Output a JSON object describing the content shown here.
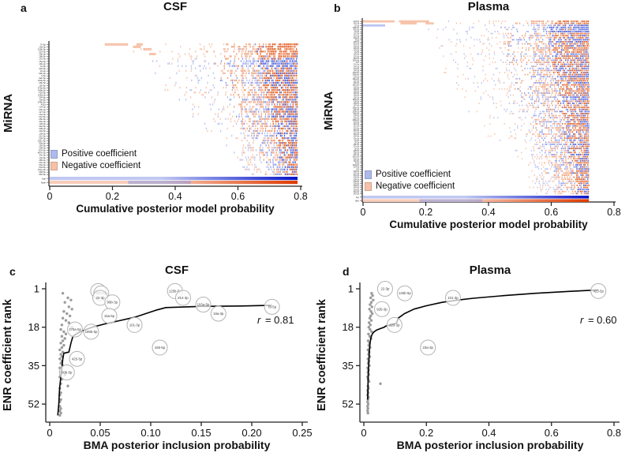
{
  "chart_data": [
    {
      "id": "a",
      "type": "heatmap",
      "panel_letter": "a",
      "title": "CSF",
      "xlabel": "Cumulative posterior model probability",
      "ylabel": "MiRNA",
      "xlim": [
        0,
        0.8
      ],
      "x_ticks": [
        0,
        0.2,
        0.4,
        0.6,
        0.8
      ],
      "x_tick_labels": [
        "0",
        "0.2",
        "0.4",
        "0.6",
        "0.8"
      ],
      "legend_position": "bottom-left",
      "legend": [
        {
          "label": "Positive coefficient",
          "color": "#aeb9ec"
        },
        {
          "label": "Negative coefficient",
          "color": "#f6c1a8"
        }
      ],
      "rows": [
        "7b-5p",
        "19a-3p",
        "125b-5p",
        "214-3p",
        "29b-3p",
        "186-5p",
        "101-3p",
        "15a-5p",
        "19b-3p",
        "21-5p",
        "320-5p",
        "22-3p",
        "99b-3p",
        "9-5p",
        "92b-5p",
        "193a-5p",
        "30b-5p",
        "165-5p",
        "375a-5p",
        "199b-5p",
        "425-5p",
        "135a-3p",
        "204-5p",
        "10a-5p",
        "146b-5p",
        "451a",
        "124-3p",
        "23b-3p",
        "127-3p",
        "142-3p",
        "222-5p",
        "26b-5p",
        "30e-3p",
        "128-3p",
        "342-5p",
        "338-3p",
        "129-5p",
        "138-5p",
        "212-3p",
        "329-3p",
        "181c-5p",
        "99a-5p",
        "150-5p",
        "206-3p",
        "874-3p",
        "487b-3p",
        "34c-5p",
        "132-5p",
        "485-3p",
        "210-3p",
        "664-3p",
        "504-5p",
        "151a-3p",
        "668-5p",
        "660-5p"
      ],
      "covariate_rows": [
        {
          "label": "Age",
          "sign": "positive",
          "gradient": [
            "#c0c8f2",
            "#0a14c8"
          ]
        },
        {
          "label": "Male",
          "sign": "negative",
          "gradient": [
            "#f8cdbb",
            "#df3a00"
          ]
        }
      ],
      "render_params": {
        "seed": 7,
        "cell_extent": 0.79,
        "f_start": 0.26,
        "f_end": 0.63,
        "neg_top_rows": 6,
        "pos_rows": [
          7,
          8
        ],
        "row_start_override": {
          "0": 0.37
        },
        "male_overlay": [
          0.25,
          0.45
        ],
        "feature_bars": [
          {
            "row": 0,
            "x0": 0.176,
            "x1": 0.249,
            "sign": "neg"
          },
          {
            "row": 0,
            "x0": 0.277,
            "x1": 0.296,
            "sign": "neg"
          },
          {
            "row": 1,
            "x0": 0.266,
            "x1": 0.29,
            "sign": "neg"
          },
          {
            "row": 2,
            "x0": 0.3,
            "x1": 0.324,
            "sign": "neg"
          },
          {
            "row": 4,
            "x0": 0.318,
            "x1": 0.338,
            "sign": "neg"
          }
        ]
      }
    },
    {
      "id": "b",
      "type": "heatmap",
      "panel_letter": "b",
      "title": "Plasma",
      "xlabel": "Cumulative posterior model probability",
      "ylabel": "MiRNA",
      "xlim": [
        0,
        0.8
      ],
      "x_ticks": [
        0,
        0.2,
        0.4,
        0.6,
        0.8
      ],
      "x_tick_labels": [
        "0",
        "0.2",
        "0.4",
        "0.6",
        "0.8"
      ],
      "legend_position": "bottom-left",
      "legend": [
        {
          "label": "Positive coefficient",
          "color": "#aeb9ec"
        },
        {
          "label": "Negative coefficient",
          "color": "#f6c1a8"
        }
      ],
      "rows": [
        "423-5p",
        "342-3p",
        "22-3p",
        "125b-5p",
        "92b-3p",
        "16-5p",
        "101-3p",
        "223-3p",
        "23a-3p",
        "451a",
        "486-5p",
        "92a-3p",
        "30d-5p",
        "126-3p",
        "145-5p",
        "21-5p",
        "155-5p",
        "191-5p",
        "26a-5p",
        "103a-3p",
        "107",
        "27b-3p",
        "140-3p",
        "142-5p",
        "144-3p",
        "146a-5p",
        "148a-3p",
        "150-5p",
        "151a-5p",
        "152-3p",
        "15b-5p",
        "181a-5p",
        "182-5p",
        "183-5p",
        "185-5p",
        "186-5p",
        "18a-5p",
        "192-5p",
        "193b-3p",
        "194-5p",
        "195-5p",
        "197-3p",
        "199a-3p",
        "19b-3p",
        "200b-3p",
        "202-3p",
        "204-5p",
        "205-5p",
        "208a-3p",
        "20a-5p",
        "210-3p",
        "212-3p",
        "215-5p",
        "218-5p",
        "221-3p",
        "222-3p",
        "224-5p",
        "23b-3p",
        "24-3p",
        "25-3p",
        "26b-5p",
        "27a-3p",
        "28-3p",
        "296-5p",
        "29a-3p",
        "29c-3p",
        "301a-3p",
        "30b-5p",
        "30c-5p",
        "320a",
        "323a-3p",
        "324-5p",
        "326",
        "328-3p",
        "330-3p",
        "331-3p",
        "335-5p",
        "338-5p",
        "339-5p",
        "33a-5p",
        "340-5p",
        "345-5p",
        "34a-5p",
        "361-5p",
        "363-3p"
      ],
      "covariate_rows": [
        {
          "label": "Age",
          "sign": "positive",
          "gradient": [
            "#c0c8f2",
            "#0a14c8"
          ]
        },
        {
          "label": "Male",
          "sign": "negative",
          "gradient": [
            "#f8cdbb",
            "#df3a00"
          ]
        }
      ],
      "render_params": {
        "seed": 13,
        "cell_extent": 0.72,
        "f_start": 0.18,
        "f_end": 0.55,
        "neg_top_rows": 2,
        "pos_rows": [
          2,
          3,
          4,
          5
        ],
        "row_start_override": {
          "0": 0.26,
          "1": 0.26,
          "2": 0.28
        },
        "male_overlay": [
          0.18,
          0.38
        ],
        "feature_bars": [
          {
            "row": 0,
            "x0": 0.0,
            "x1": 0.1,
            "sign": "neg"
          },
          {
            "row": 0,
            "x0": 0.115,
            "x1": 0.21,
            "sign": "neg"
          },
          {
            "row": 1,
            "x0": 0.12,
            "x1": 0.17,
            "sign": "neg"
          },
          {
            "row": 1,
            "x0": 0.2,
            "x1": 0.225,
            "sign": "neg"
          },
          {
            "row": 2,
            "x0": 0.0,
            "x1": 0.07,
            "sign": "pos"
          }
        ]
      }
    },
    {
      "id": "c",
      "type": "scatter",
      "panel_letter": "c",
      "title": "CSF",
      "xlabel": "BMA posterior inclusion probability",
      "ylabel": "ENR coefficient rank",
      "xlim": [
        0,
        0.25
      ],
      "ylim": [
        57,
        1
      ],
      "x_ticks": [
        0,
        0.05,
        0.1,
        0.15,
        0.2,
        0.25
      ],
      "x_tick_labels": [
        "0",
        "0.05",
        "0.10",
        "0.15",
        "0.20",
        "0.25"
      ],
      "y_ticks": [
        1,
        18,
        35,
        52
      ],
      "y_tick_labels": [
        "1",
        "18",
        "35",
        "52"
      ],
      "correlation": 0.81,
      "r_symbol": "r",
      "r_text": " = 0.81",
      "line": [
        [
          0.008,
          57
        ],
        [
          0.009,
          52
        ],
        [
          0.0095,
          47
        ],
        [
          0.01,
          44
        ],
        [
          0.011,
          40
        ],
        [
          0.012,
          36
        ],
        [
          0.013,
          32
        ],
        [
          0.014,
          29.5
        ],
        [
          0.019,
          29
        ],
        [
          0.021,
          25
        ],
        [
          0.023,
          22
        ],
        [
          0.028,
          20.5
        ],
        [
          0.033,
          19.5
        ],
        [
          0.042,
          18
        ],
        [
          0.055,
          16.5
        ],
        [
          0.07,
          15
        ],
        [
          0.085,
          13.5
        ],
        [
          0.095,
          12
        ],
        [
          0.105,
          10.5
        ],
        [
          0.115,
          9.3
        ],
        [
          0.15,
          8.8
        ],
        [
          0.19,
          8.6
        ],
        [
          0.22,
          8.3
        ]
      ],
      "labeled_points": [
        {
          "label": "21-5p",
          "x": 0.048,
          "rank": 2
        },
        {
          "label": "320-5p",
          "x": 0.051,
          "rank": 3
        },
        {
          "label": "22-3p",
          "x": 0.05,
          "rank": 5
        },
        {
          "label": "99b-3p",
          "x": 0.062,
          "rank": 7
        },
        {
          "label": "15a-5p",
          "x": 0.059,
          "rank": 13
        },
        {
          "label": "125b-5p",
          "x": 0.124,
          "rank": 2
        },
        {
          "label": "214-3p",
          "x": 0.132,
          "rank": 5
        },
        {
          "label": "193a-5p",
          "x": 0.152,
          "rank": 8
        },
        {
          "label": "19a-3p",
          "x": 0.167,
          "rank": 12
        },
        {
          "label": "7b-5p",
          "x": 0.22,
          "rank": 9
        },
        {
          "label": "101-3p",
          "x": 0.084,
          "rank": 17
        },
        {
          "label": "165-5p",
          "x": 0.109,
          "rank": 27
        },
        {
          "label": "375a-5p",
          "x": 0.025,
          "rank": 19
        },
        {
          "label": "199b-5p",
          "x": 0.041,
          "rank": 20
        },
        {
          "label": "425-5p",
          "x": 0.027,
          "rank": 32
        },
        {
          "label": "30b-5p",
          "x": 0.017,
          "rank": 38
        }
      ],
      "dots": [
        [
          0.013,
          3
        ],
        [
          0.018,
          5
        ],
        [
          0.021,
          6
        ],
        [
          0.015,
          7
        ],
        [
          0.019,
          9
        ],
        [
          0.022,
          10
        ],
        [
          0.014,
          11
        ],
        [
          0.017,
          12
        ],
        [
          0.02,
          13
        ],
        [
          0.013,
          14
        ],
        [
          0.016,
          15
        ],
        [
          0.019,
          16
        ],
        [
          0.012,
          17
        ],
        [
          0.022,
          18
        ],
        [
          0.011,
          19
        ],
        [
          0.014,
          20
        ],
        [
          0.016,
          21
        ],
        [
          0.012,
          22
        ],
        [
          0.015,
          23
        ],
        [
          0.013,
          24
        ],
        [
          0.011,
          25
        ],
        [
          0.014,
          26
        ],
        [
          0.012,
          27
        ],
        [
          0.01,
          28
        ],
        [
          0.013,
          29
        ],
        [
          0.011,
          30
        ],
        [
          0.012,
          31
        ],
        [
          0.01,
          32
        ],
        [
          0.012,
          33
        ],
        [
          0.011,
          34
        ],
        [
          0.013,
          35
        ],
        [
          0.01,
          36
        ],
        [
          0.011,
          38
        ],
        [
          0.015,
          39
        ],
        [
          0.01,
          40
        ],
        [
          0.012,
          41
        ],
        [
          0.011,
          43
        ],
        [
          0.018,
          44
        ],
        [
          0.01,
          45
        ],
        [
          0.011,
          47
        ],
        [
          0.01,
          48
        ],
        [
          0.011,
          50
        ],
        [
          0.01,
          51
        ],
        [
          0.01,
          53
        ],
        [
          0.011,
          54
        ],
        [
          0.01,
          55
        ],
        [
          0.011,
          56
        ],
        [
          0.01,
          57
        ]
      ]
    },
    {
      "id": "d",
      "type": "scatter",
      "panel_letter": "d",
      "title": "Plasma",
      "xlabel": "BMA posterior inclusion probability",
      "ylabel": "ENR coefficient rank",
      "xlim": [
        0,
        0.8
      ],
      "ylim": [
        57,
        1
      ],
      "x_ticks": [
        0,
        0.2,
        0.4,
        0.6,
        0.8
      ],
      "x_tick_labels": [
        "0",
        "0.2",
        "0.4",
        "0.6",
        "0.8"
      ],
      "y_ticks": [
        1,
        18,
        35,
        52
      ],
      "y_tick_labels": [
        "1",
        "18",
        "35",
        "52"
      ],
      "correlation": 0.6,
      "r_symbol": "r",
      "r_text": " = 0.60",
      "line": [
        [
          0.012,
          50
        ],
        [
          0.013,
          46
        ],
        [
          0.0135,
          43
        ],
        [
          0.014,
          40
        ],
        [
          0.015,
          37
        ],
        [
          0.016,
          34
        ],
        [
          0.017,
          31
        ],
        [
          0.018,
          28
        ],
        [
          0.02,
          25
        ],
        [
          0.023,
          22.5
        ],
        [
          0.027,
          21
        ],
        [
          0.033,
          20
        ],
        [
          0.042,
          19.2
        ],
        [
          0.055,
          18.5
        ],
        [
          0.065,
          18
        ],
        [
          0.07,
          17.5
        ],
        [
          0.085,
          17
        ],
        [
          0.1,
          16.5
        ],
        [
          0.105,
          16
        ],
        [
          0.11,
          14
        ],
        [
          0.13,
          12
        ],
        [
          0.16,
          10
        ],
        [
          0.2,
          8.5
        ],
        [
          0.25,
          7
        ],
        [
          0.3,
          6
        ],
        [
          0.35,
          5.2
        ],
        [
          0.45,
          4
        ],
        [
          0.55,
          3
        ],
        [
          0.65,
          2.2
        ],
        [
          0.75,
          1.5
        ]
      ],
      "labeled_points": [
        {
          "label": "22-3p",
          "x": 0.068,
          "rank": 1
        },
        {
          "label": "125b-5p",
          "x": 0.131,
          "rank": 3
        },
        {
          "label": "101-3p",
          "x": 0.285,
          "rank": 5
        },
        {
          "label": "423-5p",
          "x": 0.75,
          "rank": 2
        },
        {
          "label": "92b-3p",
          "x": 0.058,
          "rank": 10
        },
        {
          "label": "223-3p",
          "x": 0.098,
          "rank": 17
        },
        {
          "label": "23a-3p",
          "x": 0.205,
          "rank": 27
        }
      ],
      "dots": [
        [
          0.025,
          3
        ],
        [
          0.028,
          4
        ],
        [
          0.022,
          5
        ],
        [
          0.03,
          6
        ],
        [
          0.024,
          7
        ],
        [
          0.02,
          8
        ],
        [
          0.026,
          9
        ],
        [
          0.018,
          10
        ],
        [
          0.023,
          11
        ],
        [
          0.027,
          12
        ],
        [
          0.022,
          13
        ],
        [
          0.019,
          14
        ],
        [
          0.024,
          15
        ],
        [
          0.017,
          16
        ],
        [
          0.021,
          17
        ],
        [
          0.016,
          18
        ],
        [
          0.02,
          19
        ],
        [
          0.025,
          20
        ],
        [
          0.015,
          21
        ],
        [
          0.019,
          22
        ],
        [
          0.023,
          23
        ],
        [
          0.014,
          24
        ],
        [
          0.018,
          25
        ],
        [
          0.016,
          26
        ],
        [
          0.02,
          27
        ],
        [
          0.013,
          28
        ],
        [
          0.017,
          29
        ],
        [
          0.015,
          30
        ],
        [
          0.019,
          31
        ],
        [
          0.013,
          32
        ],
        [
          0.016,
          33
        ],
        [
          0.014,
          34
        ],
        [
          0.018,
          35
        ],
        [
          0.012,
          36
        ],
        [
          0.015,
          37
        ],
        [
          0.013,
          38
        ],
        [
          0.016,
          39
        ],
        [
          0.012,
          40
        ],
        [
          0.014,
          41
        ],
        [
          0.017,
          42
        ],
        [
          0.053,
          43
        ],
        [
          0.013,
          44
        ],
        [
          0.015,
          45
        ],
        [
          0.012,
          46
        ],
        [
          0.014,
          47
        ],
        [
          0.012,
          48
        ],
        [
          0.015,
          49
        ],
        [
          0.013,
          50
        ],
        [
          0.012,
          51
        ],
        [
          0.014,
          52
        ],
        [
          0.012,
          53
        ],
        [
          0.013,
          54
        ],
        [
          0.012,
          55
        ],
        [
          0.013,
          56
        ]
      ]
    }
  ],
  "colors": {
    "positive_light": "#bcc5f1",
    "positive_mid": "#8d9dea",
    "positive_dark": "#4f63da",
    "negative_light": "#f7c7b1",
    "negative_mid": "#f0a179",
    "negative_dark": "#e2632a",
    "dot_gray": "#9b9b9b",
    "circle_stroke": "#b3b3b3",
    "trend_line": "#000000",
    "axis": "#222222"
  }
}
